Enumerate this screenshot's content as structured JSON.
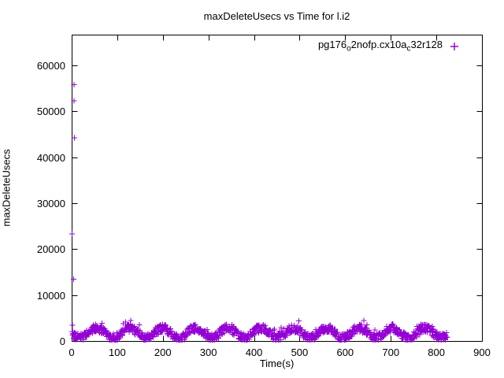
{
  "title": "maxDeleteUsecs vs Time for l.i2",
  "x_axis": {
    "label": "Time(s)",
    "min": 0,
    "max": 900,
    "ticks": [
      0,
      100,
      200,
      300,
      400,
      500,
      600,
      700,
      800,
      900
    ]
  },
  "y_axis": {
    "label": "maxDeleteUsecs",
    "min": 0,
    "max": 66700,
    "ticks": [
      0,
      10000,
      20000,
      30000,
      40000,
      50000,
      60000
    ]
  },
  "legend": {
    "series_label_plain": "pg176_o2nofp.cx10a_c32r128",
    "segments": [
      {
        "text": "pg176",
        "sub": false
      },
      {
        "text": "o",
        "sub": true
      },
      {
        "text": "2nofp.cx10a",
        "sub": false
      },
      {
        "text": "c",
        "sub": true
      },
      {
        "text": "32r128",
        "sub": false
      }
    ],
    "marker": "plus-icon"
  },
  "colors": {
    "series": "#9400D3",
    "axis": "#000000",
    "background": "#ffffff",
    "text": "#000000"
  },
  "chart_data": {
    "type": "scatter",
    "title": "maxDeleteUsecs vs Time for l.i2",
    "xlabel": "Time(s)",
    "ylabel": "maxDeleteUsecs",
    "xlim": [
      0,
      900
    ],
    "ylim": [
      0,
      66700
    ],
    "grid": false,
    "legend_position": "top-right-inside",
    "series": [
      {
        "name": "pg176_o2nofp.cx10a_c32r128",
        "marker": "plus",
        "color": "#9400D3",
        "outlier_points": [
          [
            5,
            55800
          ],
          [
            5,
            52300
          ],
          [
            6,
            44200
          ],
          [
            1,
            23300
          ],
          [
            4,
            13500
          ],
          [
            2,
            3400
          ]
        ],
        "band_model": {
          "description": "dense oscillating scatter band hugging the x-axis",
          "t_start": 0,
          "t_end": 824,
          "step": 0.72,
          "base": 1750,
          "amplitude": 1050,
          "period": 72,
          "phase": 37,
          "noise": 900,
          "spike_probability": 0.03,
          "spike_amplitude": 1800,
          "min_value": 250,
          "x_jitter": 1.5,
          "seed": 42
        }
      }
    ]
  }
}
